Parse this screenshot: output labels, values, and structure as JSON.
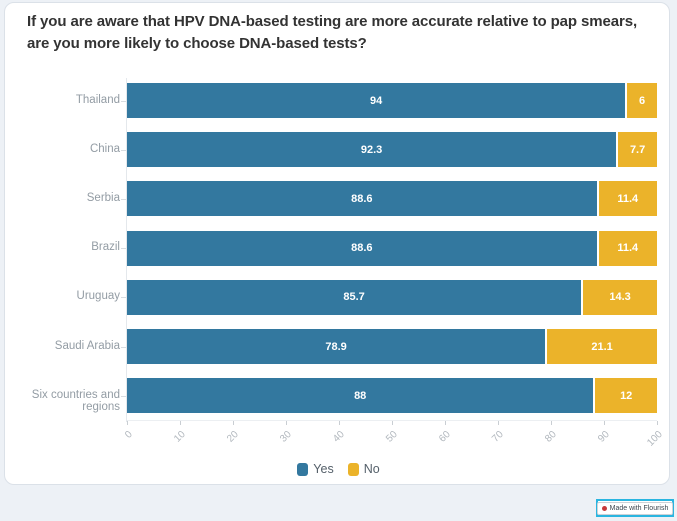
{
  "title": "If you are aware that HPV DNA-based testing are more accurate relative to pap smears, are you more likely to choose DNA-based tests?",
  "colors": {
    "yes": "#33789f",
    "no": "#ebb32a",
    "card_background": "#ffffff",
    "page_background": "#edf1f6",
    "badge_highlight": "#2ab5e0"
  },
  "chart_data": {
    "type": "bar",
    "orientation": "horizontal",
    "stacked": true,
    "title": "If you are aware that HPV DNA-based testing are more accurate relative to pap smears, are you more likely to choose DNA-based tests?",
    "categories": [
      "Thailand",
      "China",
      "Serbia",
      "Brazil",
      "Uruguay",
      "Saudi Arabia",
      "Six countries and regions"
    ],
    "series": [
      {
        "name": "Yes",
        "color": "#33789f",
        "values": [
          94,
          92.3,
          88.6,
          88.6,
          85.7,
          78.9,
          88
        ]
      },
      {
        "name": "No",
        "color": "#ebb32a",
        "values": [
          6,
          7.7,
          11.4,
          11.4,
          14.3,
          21.1,
          12
        ]
      }
    ],
    "xlabel": "",
    "ylabel": "",
    "xlim": [
      0,
      100
    ],
    "x_ticks": [
      0,
      10,
      20,
      30,
      40,
      50,
      60,
      70,
      80,
      90,
      100
    ],
    "grid": false,
    "legend_position": "bottom-center",
    "value_labels_shown": true
  },
  "legend": {
    "items": [
      {
        "label": "Yes",
        "color": "#33789f"
      },
      {
        "label": "No",
        "color": "#ebb32a"
      }
    ]
  },
  "badge": {
    "label": "Made with Flourish"
  }
}
